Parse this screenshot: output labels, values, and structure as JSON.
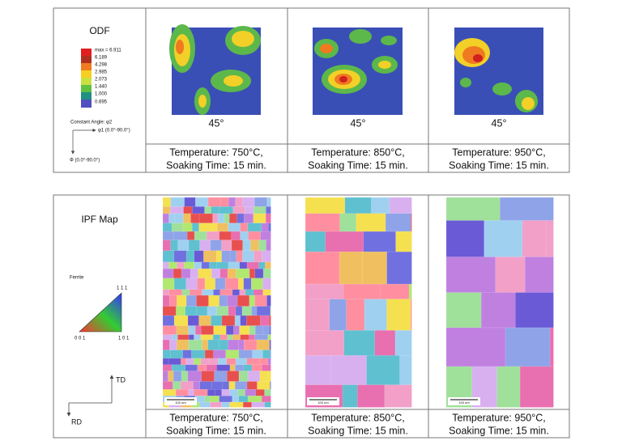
{
  "odf": {
    "title": "ODF",
    "legend": [
      "max = 6.911",
      "6.189",
      "4.298",
      "2.985",
      "2.073",
      "1.440",
      "1.000",
      "0.695"
    ],
    "constant_angle": "Constant Angle: φ2",
    "phi1": "φ1 (0.0°-90.0°)",
    "Phi": "Φ (0.0°-90.0°)",
    "panels": [
      {
        "angle": "45°",
        "temperature": "Temperature: 750°C,",
        "time": "Soaking Time: 15 min."
      },
      {
        "angle": "45°",
        "temperature": "Temperature: 850°C,",
        "time": "Soaking Time: 15 min."
      },
      {
        "angle": "45°",
        "temperature": "Temperature: 950°C,",
        "time": "Soaking Time: 15 min."
      }
    ]
  },
  "ipf": {
    "title": "IPF Map",
    "phase": "Ferrite",
    "corner_111": "1 1 1",
    "corner_001": "0 0 1",
    "corner_101": "1 0 1",
    "td": "TD",
    "rd": "RD",
    "panels": [
      {
        "scale": "100 um",
        "temperature": "Temperature: 750°C,",
        "time": "Soaking Time: 15 min."
      },
      {
        "scale": "100 um",
        "temperature": "Temperature: 850°C,",
        "time": "Soaking Time: 15 min."
      },
      {
        "scale": "100 um",
        "temperature": "Temperature: 950°C,",
        "time": "Soaking Time: 15 min."
      }
    ]
  }
}
